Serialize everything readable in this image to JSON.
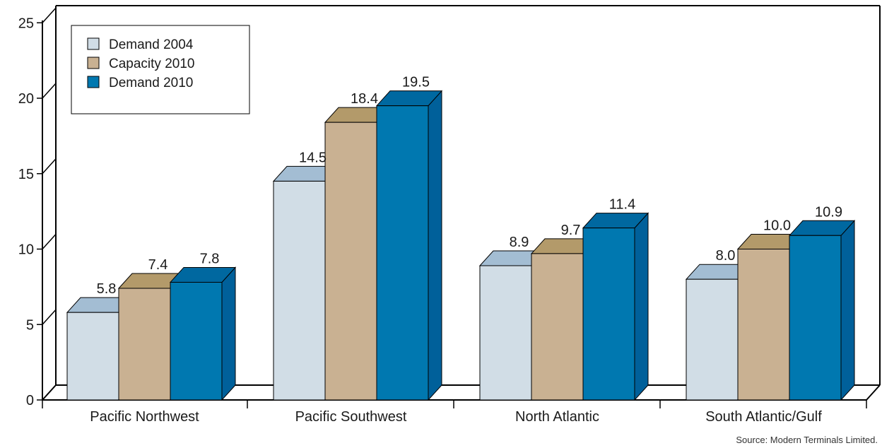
{
  "chart_data": {
    "type": "bar",
    "categories": [
      "Pacific Northwest",
      "Pacific Southwest",
      "North Atlantic",
      "South Atlantic/Gulf"
    ],
    "series": [
      {
        "name": "Demand 2004",
        "values": [
          5.8,
          14.5,
          8.9,
          8.0
        ],
        "labels": [
          "5.8",
          "14.5",
          "8.9",
          "8.0"
        ],
        "color": "#d1dde6",
        "top_color": "#a3bdd3",
        "side_color": "#a3bdd3"
      },
      {
        "name": "Capacity 2010",
        "values": [
          7.4,
          18.4,
          9.7,
          10.0
        ],
        "labels": [
          "7.4",
          "18.4",
          "9.7",
          "10.0"
        ],
        "color": "#c9b192",
        "top_color": "#b39a6a",
        "side_color": "#b39a6a"
      },
      {
        "name": "Demand 2010",
        "values": [
          7.8,
          19.5,
          11.4,
          10.9
        ],
        "labels": [
          "7.8",
          "19.5",
          "11.4",
          "10.9"
        ],
        "color": "#0078b0",
        "top_color": "#0068a0",
        "side_color": "#00609a"
      }
    ],
    "y_ticks": [
      "0",
      "5",
      "10",
      "15",
      "20",
      "25"
    ],
    "ylim": [
      0,
      25
    ],
    "legend_position": "top-left",
    "grid": false,
    "three_d": true
  },
  "source": "Source: Modern Terminals Limited."
}
